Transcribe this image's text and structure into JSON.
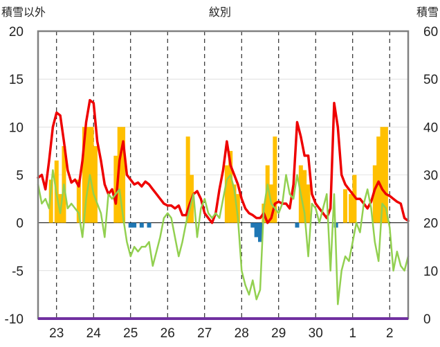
{
  "chart_data": {
    "type": "line",
    "title": "紋別",
    "ylabel_left": "積雪以外",
    "ylabel_right": "積雪",
    "ylim_left": [
      -10,
      20
    ],
    "ylim_right": [
      0,
      60
    ],
    "yticks_left": [
      "20",
      "15",
      "10",
      "5",
      "0",
      "-5",
      "-10"
    ],
    "yticks_right": [
      "60",
      "50",
      "40",
      "30",
      "20",
      "10",
      "0"
    ],
    "categories": [
      "23",
      "24",
      "25",
      "26",
      "27",
      "28",
      "29",
      "30",
      "1",
      "2"
    ],
    "grid": true,
    "colors": {
      "red": "#ee0000",
      "green": "#92d050",
      "orange": "#ffc000",
      "blue": "#1f77b4",
      "purple": "#7030a0",
      "grid": "#000000",
      "frame": "#808080"
    },
    "series": [
      {
        "color": "red",
        "axis": "left",
        "x": [
          0,
          0.1,
          0.2,
          0.3,
          0.4,
          0.5,
          0.6,
          0.7,
          0.8,
          0.9,
          1.0,
          1.1,
          1.2,
          1.3,
          1.4,
          1.5,
          1.6,
          1.7,
          1.8,
          1.9,
          2.0,
          2.1,
          2.2,
          2.3,
          2.4,
          2.5,
          2.6,
          2.7,
          2.8,
          2.9,
          3.0,
          3.1,
          3.2,
          3.3,
          3.4,
          3.5,
          3.6,
          3.7,
          3.8,
          3.9,
          4.0,
          4.1,
          4.2,
          4.3,
          4.4,
          4.5,
          4.6,
          4.7,
          4.8,
          4.9,
          5.0,
          5.1,
          5.2,
          5.3,
          5.4,
          5.5,
          5.6,
          5.7,
          5.8,
          5.9,
          6.0,
          6.1,
          6.2,
          6.3,
          6.4,
          6.5,
          6.6,
          6.7,
          6.8,
          6.9,
          7.0,
          7.1,
          7.2,
          7.3,
          7.4,
          7.5,
          7.6,
          7.7,
          7.8,
          7.9,
          8.0,
          8.1,
          8.2,
          8.3,
          8.4,
          8.5,
          8.6,
          8.7,
          8.8,
          8.9,
          9.0,
          9.1,
          9.2,
          9.3,
          9.4,
          9.5,
          9.6,
          9.7,
          9.8,
          9.9,
          10.0
        ],
        "y": [
          4.7,
          5.0,
          3.5,
          6.5,
          10.0,
          11.5,
          11.2,
          8.5,
          5.5,
          4.2,
          4.5,
          3.8,
          6.5,
          10.5,
          12.8,
          12.5,
          8.5,
          6.5,
          4.0,
          3.0,
          3.5,
          2.0,
          6.5,
          8.5,
          5.0,
          4.5,
          4.0,
          4.2,
          3.8,
          4.3,
          4.0,
          3.5,
          3.0,
          2.5,
          2.0,
          1.8,
          1.8,
          1.5,
          1.8,
          0.8,
          0.8,
          2.0,
          3.0,
          3.3,
          2.5,
          1.0,
          0.5,
          0.0,
          1.0,
          3.5,
          5.5,
          8.5,
          6.0,
          5.0,
          4.0,
          2.5,
          1.5,
          1.0,
          0.8,
          0.5,
          0.5,
          1.0,
          0.0,
          0.5,
          2.0,
          2.2,
          2.0,
          2.0,
          1.5,
          4.0,
          10.5,
          9.0,
          7.0,
          7.0,
          3.0,
          2.0,
          1.5,
          1.0,
          0.5,
          1.5,
          12.5,
          10.0,
          5.0,
          4.0,
          3.5,
          3.0,
          2.5,
          2.5,
          2.0,
          1.5,
          2.2,
          3.5,
          4.3,
          3.5,
          3.0,
          2.8,
          2.5,
          2.2,
          2.0,
          0.5,
          0.2
        ]
      },
      {
        "color": "green",
        "axis": "left",
        "x": [
          0,
          0.1,
          0.2,
          0.3,
          0.4,
          0.5,
          0.6,
          0.7,
          0.8,
          0.9,
          1.0,
          1.1,
          1.2,
          1.3,
          1.4,
          1.5,
          1.6,
          1.7,
          1.8,
          1.9,
          2.0,
          2.1,
          2.2,
          2.3,
          2.4,
          2.5,
          2.6,
          2.7,
          2.8,
          2.9,
          3.0,
          3.1,
          3.2,
          3.3,
          3.4,
          3.5,
          3.6,
          3.7,
          3.8,
          3.9,
          4.0,
          4.1,
          4.2,
          4.3,
          4.4,
          4.5,
          4.6,
          4.7,
          4.8,
          4.9,
          5.0,
          5.1,
          5.2,
          5.3,
          5.4,
          5.5,
          5.6,
          5.7,
          5.8,
          5.9,
          6.0,
          6.1,
          6.2,
          6.3,
          6.4,
          6.5,
          6.6,
          6.7,
          6.8,
          6.9,
          7.0,
          7.1,
          7.2,
          7.3,
          7.4,
          7.5,
          7.6,
          7.7,
          7.8,
          7.9,
          8.0,
          8.1,
          8.2,
          8.3,
          8.4,
          8.5,
          8.6,
          8.7,
          8.8,
          8.9,
          9.0,
          9.1,
          9.2,
          9.3,
          9.4,
          9.5,
          9.6,
          9.7,
          9.8,
          9.9,
          10.0
        ],
        "y": [
          4.0,
          2.0,
          2.5,
          1.5,
          5.5,
          3.0,
          1.0,
          4.0,
          1.5,
          2.0,
          1.5,
          1.0,
          -1.5,
          2.5,
          5.0,
          3.0,
          2.0,
          1.0,
          -1.5,
          3.0,
          2.5,
          3.0,
          3.5,
          0.5,
          -2.0,
          -3.5,
          -2.5,
          -3.0,
          -2.5,
          -2.5,
          -2.0,
          -4.5,
          -3.0,
          -1.5,
          0.5,
          1.0,
          0.5,
          -1.5,
          -3.5,
          -2.0,
          0.0,
          1.5,
          3.0,
          -1.5,
          1.5,
          2.5,
          1.0,
          0.5,
          1.0,
          0.5,
          2.5,
          4.5,
          5.0,
          3.5,
          0.5,
          -5.0,
          -6.5,
          -7.5,
          -6.0,
          -8.0,
          -7.0,
          1.5,
          4.0,
          2.0,
          1.5,
          1.0,
          2.0,
          5.0,
          3.0,
          2.5,
          5.0,
          3.0,
          1.0,
          -3.5,
          2.0,
          1.5,
          0.0,
          1.5,
          3.0,
          -5.0,
          3.0,
          -8.5,
          -5.0,
          -3.5,
          -4.0,
          -2.0,
          0.0,
          -1.0,
          2.0,
          3.5,
          1.5,
          -2.0,
          -4.0,
          2.0,
          1.5,
          -0.5,
          -5.0,
          -3.0,
          -4.5,
          -5.0,
          -3.5
        ]
      }
    ],
    "bars": [
      {
        "color": "orange",
        "axis": "left",
        "x": [
          0.35,
          0.5,
          0.6,
          0.7,
          1.1,
          1.25,
          1.35,
          1.45,
          1.55,
          2.1,
          2.2,
          2.3,
          4.05,
          4.15,
          5.1,
          5.2,
          5.3,
          5.4,
          6.1,
          6.2,
          6.3,
          6.4,
          7.1,
          7.2,
          7.3,
          8.3,
          8.45,
          8.55,
          9.1,
          9.2,
          9.3,
          9.4
        ],
        "y": [
          4.5,
          6.5,
          3.0,
          8.0,
          4.5,
          10.0,
          10.0,
          10.0,
          8.0,
          7.0,
          10.0,
          10.0,
          9.0,
          5.0,
          6.0,
          7.5,
          4.0,
          3.0,
          2.0,
          6.0,
          4.0,
          9.0,
          6.0,
          5.5,
          4.0,
          3.5,
          3.0,
          5.0,
          6.0,
          9.0,
          10.0,
          10.0
        ]
      },
      {
        "color": "blue",
        "axis": "left",
        "x": [
          2.5,
          2.6,
          2.8,
          3.0,
          5.8,
          5.9,
          6.0,
          7.0,
          8.05
        ],
        "y": [
          -0.5,
          -0.5,
          -0.5,
          -0.5,
          -0.5,
          -1.5,
          -2.0,
          -0.5,
          -0.5
        ]
      }
    ]
  }
}
